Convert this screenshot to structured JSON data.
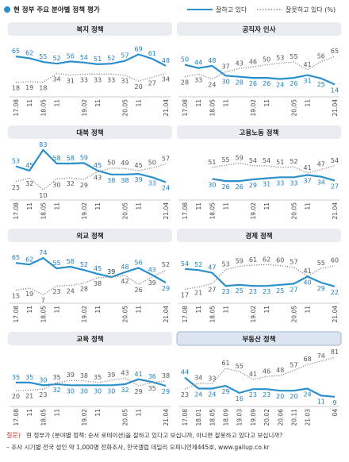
{
  "header": {
    "title": "현 정부 주요 분야별 정책 평가"
  },
  "chart_data": [
    {
      "type": "line",
      "title": "복지 정책",
      "categories": [
        "17.08",
        "11",
        "18.05",
        "11",
        null,
        "19.02",
        "11",
        null,
        "20.05",
        "11",
        null,
        "21.04"
      ],
      "ylim": [
        0,
        90
      ],
      "series": [
        {
          "name": "잘하고 있다",
          "color": "#2b8fcc",
          "values": [
            65,
            62,
            55,
            52,
            56,
            54,
            51,
            52,
            57,
            69,
            61,
            48
          ]
        },
        {
          "name": "잘못하고 있다 (%)",
          "color": "#8a8a8a",
          "values": [
            18,
            19,
            18,
            34,
            31,
            33,
            33,
            33,
            31,
            20,
            27,
            34
          ]
        }
      ]
    },
    {
      "type": "line",
      "title": "공직자 인사",
      "categories": [
        "17.08",
        "11",
        "18.05",
        "11",
        null,
        "19.02",
        "11",
        null,
        "20.05",
        "11",
        null,
        "21.04"
      ],
      "ylim": [
        0,
        90
      ],
      "series": [
        {
          "color": "#2b8fcc",
          "values": [
            50,
            44,
            48,
            30,
            28,
            26,
            26,
            24,
            26,
            31,
            25,
            14
          ]
        },
        {
          "color": "#8a8a8a",
          "values": [
            28,
            33,
            24,
            37,
            43,
            46,
            50,
            53,
            55,
            41,
            56,
            65
          ]
        }
      ]
    },
    {
      "type": "line",
      "title": "대북 정책",
      "categories": [
        "17.08",
        "11",
        "18.05",
        "11",
        null,
        "19.02",
        "11",
        null,
        "20.05",
        "11",
        null,
        "21.04"
      ],
      "ylim": [
        0,
        90
      ],
      "series": [
        {
          "color": "#2b8fcc",
          "values": [
            53,
            45,
            83,
            58,
            58,
            59,
            45,
            38,
            38,
            39,
            33,
            24
          ]
        },
        {
          "color": "#8a8a8a",
          "values": [
            25,
            32,
            10,
            30,
            32,
            29,
            43,
            50,
            49,
            45,
            50,
            57
          ]
        }
      ]
    },
    {
      "type": "line",
      "title": "고용노동 정책",
      "categories": [
        "17.08",
        "11",
        "18.05",
        "11",
        null,
        "19.02",
        "11",
        null,
        "20.05",
        "11",
        null,
        "21.04"
      ],
      "ylim": [
        0,
        90
      ],
      "series": [
        {
          "color": "#2b8fcc",
          "values": [
            null,
            null,
            30,
            26,
            26,
            29,
            31,
            33,
            33,
            37,
            34,
            27
          ]
        },
        {
          "color": "#8a8a8a",
          "values": [
            null,
            null,
            51,
            55,
            59,
            54,
            54,
            51,
            52,
            41,
            47,
            54
          ]
        }
      ]
    },
    {
      "type": "line",
      "title": "외교 정책",
      "categories": [
        "17.08",
        "11",
        "18.05",
        "11",
        null,
        "19.02",
        "11",
        null,
        "20.05",
        "11",
        null,
        "21.04"
      ],
      "ylim": [
        0,
        90
      ],
      "series": [
        {
          "color": "#2b8fcc",
          "values": [
            65,
            62,
            74,
            55,
            58,
            52,
            45,
            39,
            48,
            56,
            43,
            29
          ]
        },
        {
          "color": "#8a8a8a",
          "values": [
            15,
            19,
            7,
            23,
            24,
            28,
            38,
            39,
            42,
            26,
            39,
            52
          ]
        }
      ]
    },
    {
      "type": "line",
      "title": "경제 정책",
      "categories": [
        "17.08",
        "11",
        "18.05",
        "11",
        null,
        "19.02",
        "11",
        null,
        "20.05",
        "11",
        null,
        "21.04"
      ],
      "ylim": [
        0,
        90
      ],
      "series": [
        {
          "color": "#2b8fcc",
          "values": [
            54,
            52,
            47,
            23,
            25,
            23,
            23,
            25,
            27,
            40,
            29,
            22
          ]
        },
        {
          "color": "#8a8a8a",
          "values": [
            17,
            21,
            27,
            53,
            59,
            61,
            62,
            60,
            57,
            41,
            55,
            60
          ]
        }
      ]
    },
    {
      "type": "line",
      "title": "교육 정책",
      "categories": [
        "17.08",
        "11",
        "18.05",
        "11",
        null,
        "19.02",
        "11",
        null,
        "20.05",
        "11",
        null,
        "21.04"
      ],
      "ylim": [
        0,
        90
      ],
      "series": [
        {
          "color": "#2b8fcc",
          "values": [
            35,
            35,
            30,
            32,
            30,
            30,
            30,
            30,
            32,
            41,
            36,
            29
          ]
        },
        {
          "color": "#8a8a8a",
          "values": [
            20,
            21,
            23,
            35,
            39,
            38,
            35,
            39,
            43,
            29,
            35,
            38
          ]
        }
      ]
    },
    {
      "type": "line",
      "title": "부동산 정책",
      "highlight": true,
      "categories": [
        "17.08",
        "18.01",
        "18.05",
        "18.09",
        "19.03",
        "19.09",
        "20.02",
        "20.06",
        "20.11",
        "21.03",
        null,
        "04"
      ],
      "ylim": [
        0,
        90
      ],
      "series": [
        {
          "color": "#2b8fcc",
          "values": [
            44,
            24,
            24,
            29,
            16,
            23,
            23,
            20,
            20,
            24,
            11,
            9
          ]
        },
        {
          "color": "#8a8a8a",
          "values": [
            23,
            34,
            33,
            61,
            55,
            41,
            46,
            48,
            57,
            68,
            74,
            81
          ]
        }
      ]
    }
  ],
  "footer": {
    "question_label": "질문)",
    "question": "현 정부가 (분야별 정책: 순서 로테이션)을 잘하고 있다고 보십니까, 아니면 잘못하고 있다고 보십니까?",
    "note": "– 조사 시기별 전국 성인 약 1,000명 전화조사, 한국갤럽 데일리 오피니언제445호, www.gallup.co.kr"
  }
}
